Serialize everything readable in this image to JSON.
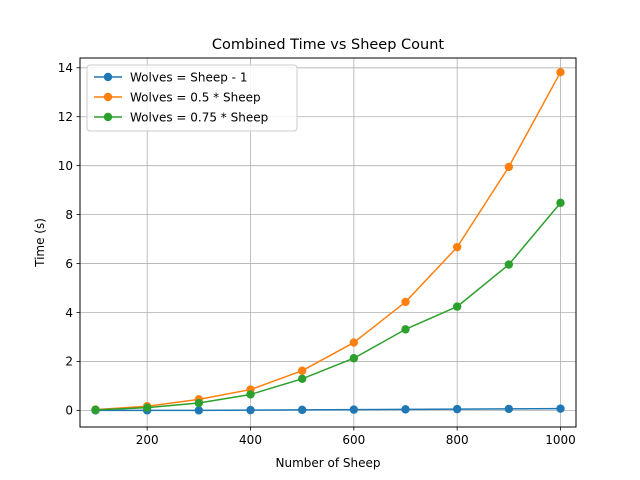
{
  "chart_data": {
    "type": "line",
    "title": "Combined Time vs Sheep Count",
    "xlabel": "Number of Sheep",
    "ylabel": "Time (s)",
    "x": [
      100,
      200,
      300,
      400,
      500,
      600,
      700,
      800,
      900,
      1000
    ],
    "xlim": [
      70,
      1030
    ],
    "ylim": [
      -0.68,
      14.4
    ],
    "xticks": [
      200,
      400,
      600,
      800,
      1000
    ],
    "yticks": [
      0,
      2,
      4,
      6,
      8,
      10,
      12,
      14
    ],
    "grid": true,
    "legend_position": "top-left",
    "series": [
      {
        "name": "Wolves = Sheep - 1",
        "color": "#1f77b4",
        "values": [
          0.0,
          0.0,
          0.0,
          0.01,
          0.02,
          0.03,
          0.04,
          0.05,
          0.06,
          0.07
        ]
      },
      {
        "name": "Wolves = 0.5 * Sheep",
        "color": "#ff7f0e",
        "values": [
          0.03,
          0.17,
          0.45,
          0.85,
          1.62,
          2.77,
          4.43,
          6.67,
          9.95,
          13.82
        ]
      },
      {
        "name": "Wolves = 0.75 * Sheep",
        "color": "#2ca02c",
        "values": [
          0.02,
          0.11,
          0.3,
          0.65,
          1.29,
          2.13,
          3.31,
          4.24,
          5.96,
          8.48
        ]
      }
    ]
  }
}
